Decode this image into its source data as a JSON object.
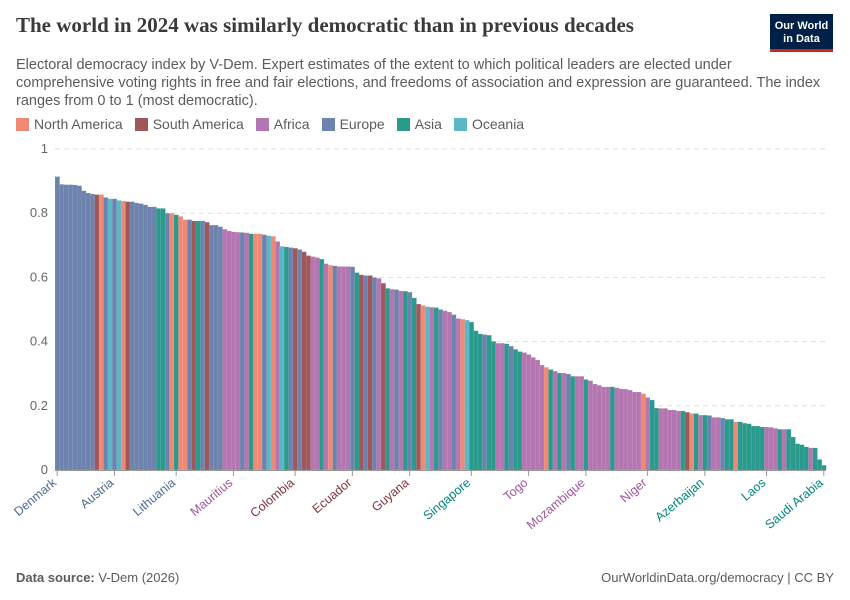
{
  "header": {
    "title": "The world in 2024 was similarly democratic than in previous decades",
    "subtitle": "Electoral democracy index by V-Dem. Expert estimates of the extent to which political leaders are elected under comprehensive voting rights in free and fair elections, and freedoms of association and expression are guaranteed. The index ranges from 0 to 1 (most democratic).",
    "logo": "Our World in Data"
  },
  "footer": {
    "source_label": "Data source:",
    "source": "V-Dem (2026)",
    "url": "OurWorldinData.org/democracy | CC BY"
  },
  "chart_data": {
    "type": "bar",
    "ylim": [
      0,
      1
    ],
    "yticks": [
      "0",
      "0.2",
      "0.4",
      "0.6",
      "0.8",
      "1"
    ],
    "grid": true,
    "legend_position": "top-left",
    "regions": [
      {
        "key": "N",
        "name": "North America",
        "color": "#ee8a74"
      },
      {
        "key": "S",
        "name": "South America",
        "color": "#a0575a"
      },
      {
        "key": "F",
        "name": "Africa",
        "color": "#b476b0"
      },
      {
        "key": "E",
        "name": "Europe",
        "color": "#6d83ad"
      },
      {
        "key": "A",
        "name": "Asia",
        "color": "#2a9a8c"
      },
      {
        "key": "O",
        "name": "Oceania",
        "color": "#5ab8c6"
      }
    ],
    "label_colors": {
      "N": "#d9583f",
      "S": "#883039",
      "F": "#a2559c",
      "E": "#4c6a9c",
      "A": "#00847e",
      "O": "#2c8ba0"
    },
    "x_tick_labels": [
      {
        "label": "Denmark",
        "region": "E"
      },
      {
        "label": "Austria",
        "region": "E"
      },
      {
        "label": "Lithuania",
        "region": "E"
      },
      {
        "label": "Mauritius",
        "region": "F"
      },
      {
        "label": "Colombia",
        "region": "S"
      },
      {
        "label": "Ecuador",
        "region": "S"
      },
      {
        "label": "Guyana",
        "region": "S"
      },
      {
        "label": "Singapore",
        "region": "A"
      },
      {
        "label": "Togo",
        "region": "F"
      },
      {
        "label": "Mozambique",
        "region": "F"
      },
      {
        "label": "Niger",
        "region": "F"
      },
      {
        "label": "Azerbaijan",
        "region": "A"
      },
      {
        "label": "Laos",
        "region": "A"
      },
      {
        "label": "Saudi Arabia",
        "region": "A"
      }
    ],
    "bars": [
      [
        "E",
        0.914
      ],
      [
        "E",
        0.89
      ],
      [
        "E",
        0.889
      ],
      [
        "E",
        0.889
      ],
      [
        "E",
        0.888
      ],
      [
        "E",
        0.886
      ],
      [
        "E",
        0.87
      ],
      [
        "E",
        0.863
      ],
      [
        "E",
        0.86
      ],
      [
        "S",
        0.858
      ],
      [
        "N",
        0.858
      ],
      [
        "E",
        0.849
      ],
      [
        "O",
        0.845
      ],
      [
        "E",
        0.845
      ],
      [
        "O",
        0.84
      ],
      [
        "N",
        0.838
      ],
      [
        "S",
        0.836
      ],
      [
        "E",
        0.836
      ],
      [
        "E",
        0.832
      ],
      [
        "E",
        0.83
      ],
      [
        "E",
        0.826
      ],
      [
        "E",
        0.82
      ],
      [
        "E",
        0.82
      ],
      [
        "A",
        0.815
      ],
      [
        "A",
        0.815
      ],
      [
        "E",
        0.8
      ],
      [
        "N",
        0.8
      ],
      [
        "A",
        0.795
      ],
      [
        "N",
        0.79
      ],
      [
        "N",
        0.78
      ],
      [
        "E",
        0.78
      ],
      [
        "S",
        0.776
      ],
      [
        "A",
        0.776
      ],
      [
        "E",
        0.776
      ],
      [
        "S",
        0.772
      ],
      [
        "E",
        0.763
      ],
      [
        "E",
        0.763
      ],
      [
        "E",
        0.758
      ],
      [
        "F",
        0.75
      ],
      [
        "F",
        0.745
      ],
      [
        "F",
        0.742
      ],
      [
        "F",
        0.741
      ],
      [
        "E",
        0.74
      ],
      [
        "F",
        0.739
      ],
      [
        "A",
        0.736
      ],
      [
        "N",
        0.736
      ],
      [
        "N",
        0.736
      ],
      [
        "E",
        0.733
      ],
      [
        "O",
        0.73
      ],
      [
        "N",
        0.728
      ],
      [
        "F",
        0.712
      ],
      [
        "O",
        0.697
      ],
      [
        "A",
        0.695
      ],
      [
        "E",
        0.693
      ],
      [
        "S",
        0.691
      ],
      [
        "E",
        0.687
      ],
      [
        "S",
        0.68
      ],
      [
        "S",
        0.668
      ],
      [
        "F",
        0.665
      ],
      [
        "F",
        0.662
      ],
      [
        "A",
        0.657
      ],
      [
        "F",
        0.643
      ],
      [
        "N",
        0.638
      ],
      [
        "E",
        0.636
      ],
      [
        "F",
        0.634
      ],
      [
        "F",
        0.634
      ],
      [
        "F",
        0.634
      ],
      [
        "E",
        0.633
      ],
      [
        "A",
        0.615
      ],
      [
        "S",
        0.608
      ],
      [
        "E",
        0.606
      ],
      [
        "S",
        0.606
      ],
      [
        "E",
        0.6
      ],
      [
        "F",
        0.597
      ],
      [
        "S",
        0.582
      ],
      [
        "A",
        0.566
      ],
      [
        "F",
        0.563
      ],
      [
        "E",
        0.562
      ],
      [
        "F",
        0.558
      ],
      [
        "A",
        0.557
      ],
      [
        "E",
        0.554
      ],
      [
        "A",
        0.536
      ],
      [
        "S",
        0.517
      ],
      [
        "N",
        0.513
      ],
      [
        "O",
        0.509
      ],
      [
        "F",
        0.507
      ],
      [
        "A",
        0.506
      ],
      [
        "E",
        0.5
      ],
      [
        "F",
        0.496
      ],
      [
        "F",
        0.492
      ],
      [
        "E",
        0.484
      ],
      [
        "F",
        0.472
      ],
      [
        "N",
        0.47
      ],
      [
        "O",
        0.467
      ],
      [
        "A",
        0.461
      ],
      [
        "A",
        0.434
      ],
      [
        "A",
        0.424
      ],
      [
        "E",
        0.422
      ],
      [
        "A",
        0.42
      ],
      [
        "A",
        0.401
      ],
      [
        "F",
        0.395
      ],
      [
        "F",
        0.395
      ],
      [
        "A",
        0.393
      ],
      [
        "E",
        0.386
      ],
      [
        "A",
        0.376
      ],
      [
        "A",
        0.369
      ],
      [
        "F",
        0.366
      ],
      [
        "F",
        0.36
      ],
      [
        "F",
        0.351
      ],
      [
        "F",
        0.343
      ],
      [
        "F",
        0.327
      ],
      [
        "N",
        0.32
      ],
      [
        "A",
        0.313
      ],
      [
        "F",
        0.308
      ],
      [
        "A",
        0.302
      ],
      [
        "F",
        0.302
      ],
      [
        "E",
        0.299
      ],
      [
        "A",
        0.292
      ],
      [
        "F",
        0.292
      ],
      [
        "F",
        0.292
      ],
      [
        "A",
        0.282
      ],
      [
        "F",
        0.278
      ],
      [
        "F",
        0.268
      ],
      [
        "F",
        0.264
      ],
      [
        "F",
        0.259
      ],
      [
        "F",
        0.259
      ],
      [
        "A",
        0.259
      ],
      [
        "F",
        0.256
      ],
      [
        "F",
        0.253
      ],
      [
        "F",
        0.252
      ],
      [
        "F",
        0.249
      ],
      [
        "F",
        0.243
      ],
      [
        "F",
        0.243
      ],
      [
        "N",
        0.238
      ],
      [
        "F",
        0.226
      ],
      [
        "A",
        0.218
      ],
      [
        "A",
        0.193
      ],
      [
        "F",
        0.192
      ],
      [
        "F",
        0.192
      ],
      [
        "F",
        0.187
      ],
      [
        "F",
        0.187
      ],
      [
        "F",
        0.184
      ],
      [
        "A",
        0.184
      ],
      [
        "S",
        0.18
      ],
      [
        "N",
        0.176
      ],
      [
        "A",
        0.176
      ],
      [
        "F",
        0.171
      ],
      [
        "A",
        0.171
      ],
      [
        "E",
        0.17
      ],
      [
        "F",
        0.164
      ],
      [
        "F",
        0.164
      ],
      [
        "E",
        0.162
      ],
      [
        "A",
        0.158
      ],
      [
        "A",
        0.158
      ],
      [
        "N",
        0.15
      ],
      [
        "A",
        0.15
      ],
      [
        "A",
        0.146
      ],
      [
        "A",
        0.144
      ],
      [
        "A",
        0.137
      ],
      [
        "A",
        0.137
      ],
      [
        "A",
        0.134
      ],
      [
        "F",
        0.134
      ],
      [
        "F",
        0.133
      ],
      [
        "F",
        0.13
      ],
      [
        "A",
        0.127
      ],
      [
        "F",
        0.127
      ],
      [
        "A",
        0.127
      ],
      [
        "A",
        0.103
      ],
      [
        "A",
        0.082
      ],
      [
        "A",
        0.079
      ],
      [
        "A",
        0.072
      ],
      [
        "F",
        0.069
      ],
      [
        "A",
        0.069
      ],
      [
        "A",
        0.033
      ],
      [
        "A",
        0.015
      ]
    ]
  }
}
